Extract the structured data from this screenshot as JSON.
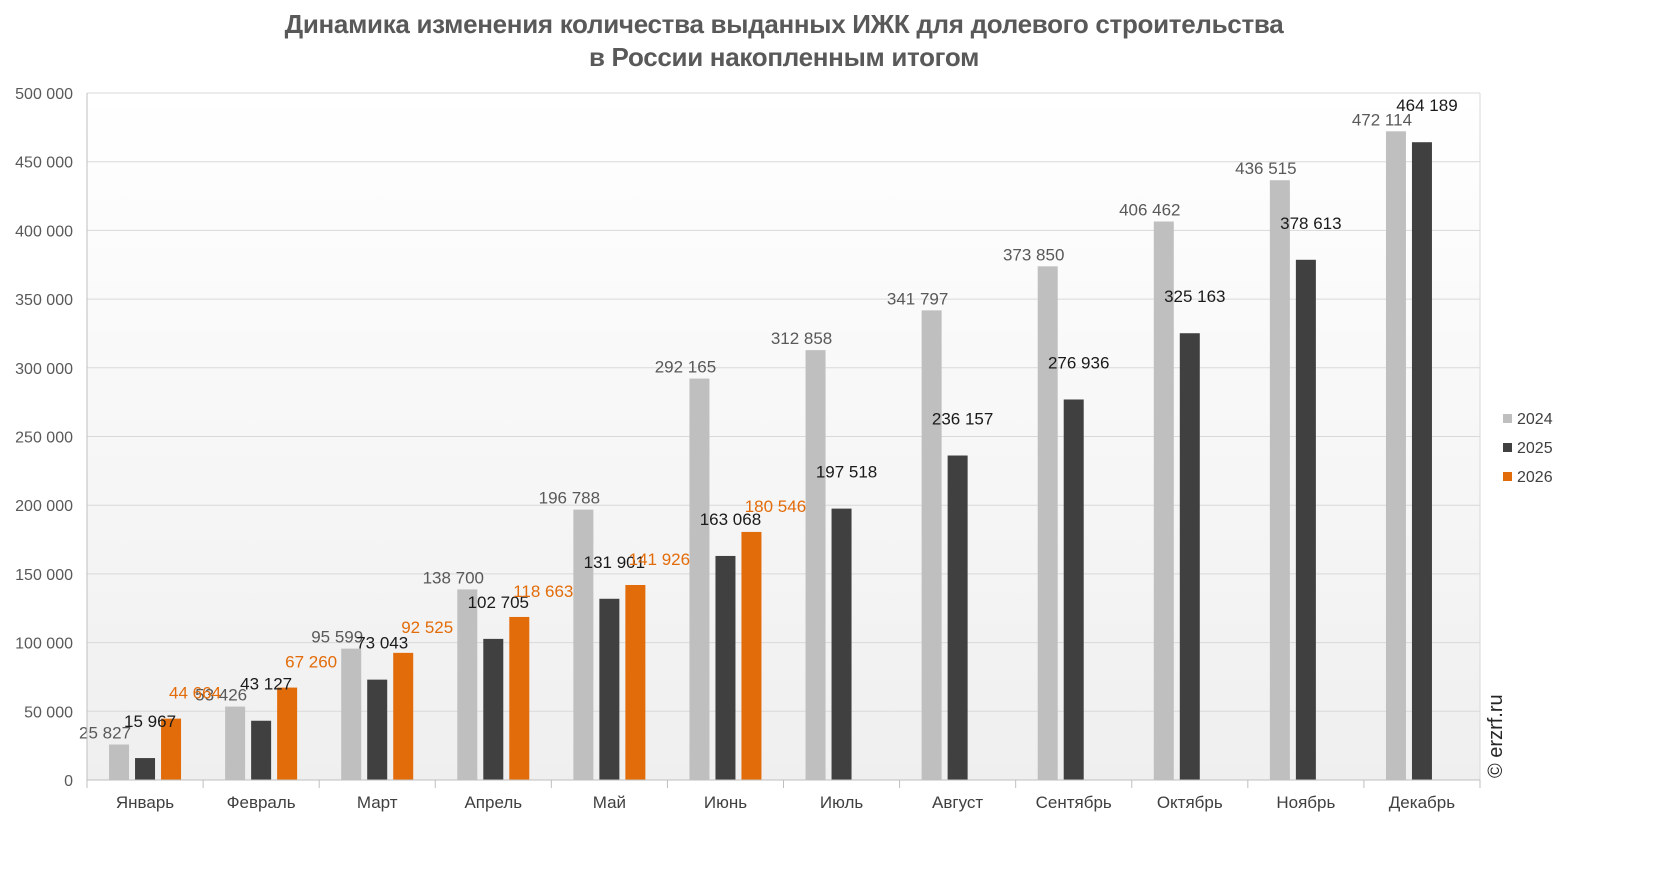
{
  "chart_data": {
    "type": "bar",
    "title_lines": [
      "Динамика изменения количества выданных ИЖК для долевого строительства",
      "в России накопленным итогом"
    ],
    "categories": [
      "Январь",
      "Февраль",
      "Март",
      "Апрель",
      "Май",
      "Июнь",
      "Июль",
      "Август",
      "Сентябрь",
      "Октябрь",
      "Ноябрь",
      "Декабрь"
    ],
    "ylim": [
      0,
      500000
    ],
    "yticks": [
      0,
      50000,
      100000,
      150000,
      200000,
      250000,
      300000,
      350000,
      400000,
      450000,
      500000
    ],
    "ytick_labels": [
      "0",
      "50 000",
      "100 000",
      "150 000",
      "200 000",
      "250 000",
      "300 000",
      "350 000",
      "400 000",
      "450 000",
      "500 000"
    ],
    "grid": true,
    "legend_position": "right",
    "series": [
      {
        "name": "2024",
        "color": "#bfbfbf",
        "label_color": "#595959",
        "values": [
          25827,
          53426,
          95599,
          138700,
          196788,
          292165,
          312858,
          341797,
          373850,
          406462,
          436515,
          472114
        ],
        "labels": [
          "25 827",
          "53 426",
          "95 599",
          "138 700",
          "196 788",
          "292 165",
          "312 858",
          "341 797",
          "373 850",
          "406 462",
          "436 515",
          "472 114"
        ]
      },
      {
        "name": "2025",
        "color": "#404040",
        "label_color": "#1a1a1a",
        "values": [
          15967,
          43127,
          73043,
          102705,
          131901,
          163068,
          197518,
          236157,
          276936,
          325163,
          378613,
          464189
        ],
        "labels": [
          "15 967",
          "43 127",
          "73 043",
          "102 705",
          "131 901",
          "163 068",
          "197 518",
          "236 157",
          "276 936",
          "325 163",
          "378 613",
          "464 189"
        ]
      },
      {
        "name": "2026",
        "color": "#e36c0a",
        "label_color": "#e36c0a",
        "values": [
          44664,
          67260,
          92525,
          118663,
          141926,
          180546,
          null,
          null,
          null,
          null,
          null,
          null
        ],
        "labels": [
          "44 664",
          "67 260",
          "92 525",
          "118 663",
          "141 926",
          "180 546",
          null,
          null,
          null,
          null,
          null,
          null
        ]
      }
    ]
  },
  "watermark": "© erzrf.ru"
}
